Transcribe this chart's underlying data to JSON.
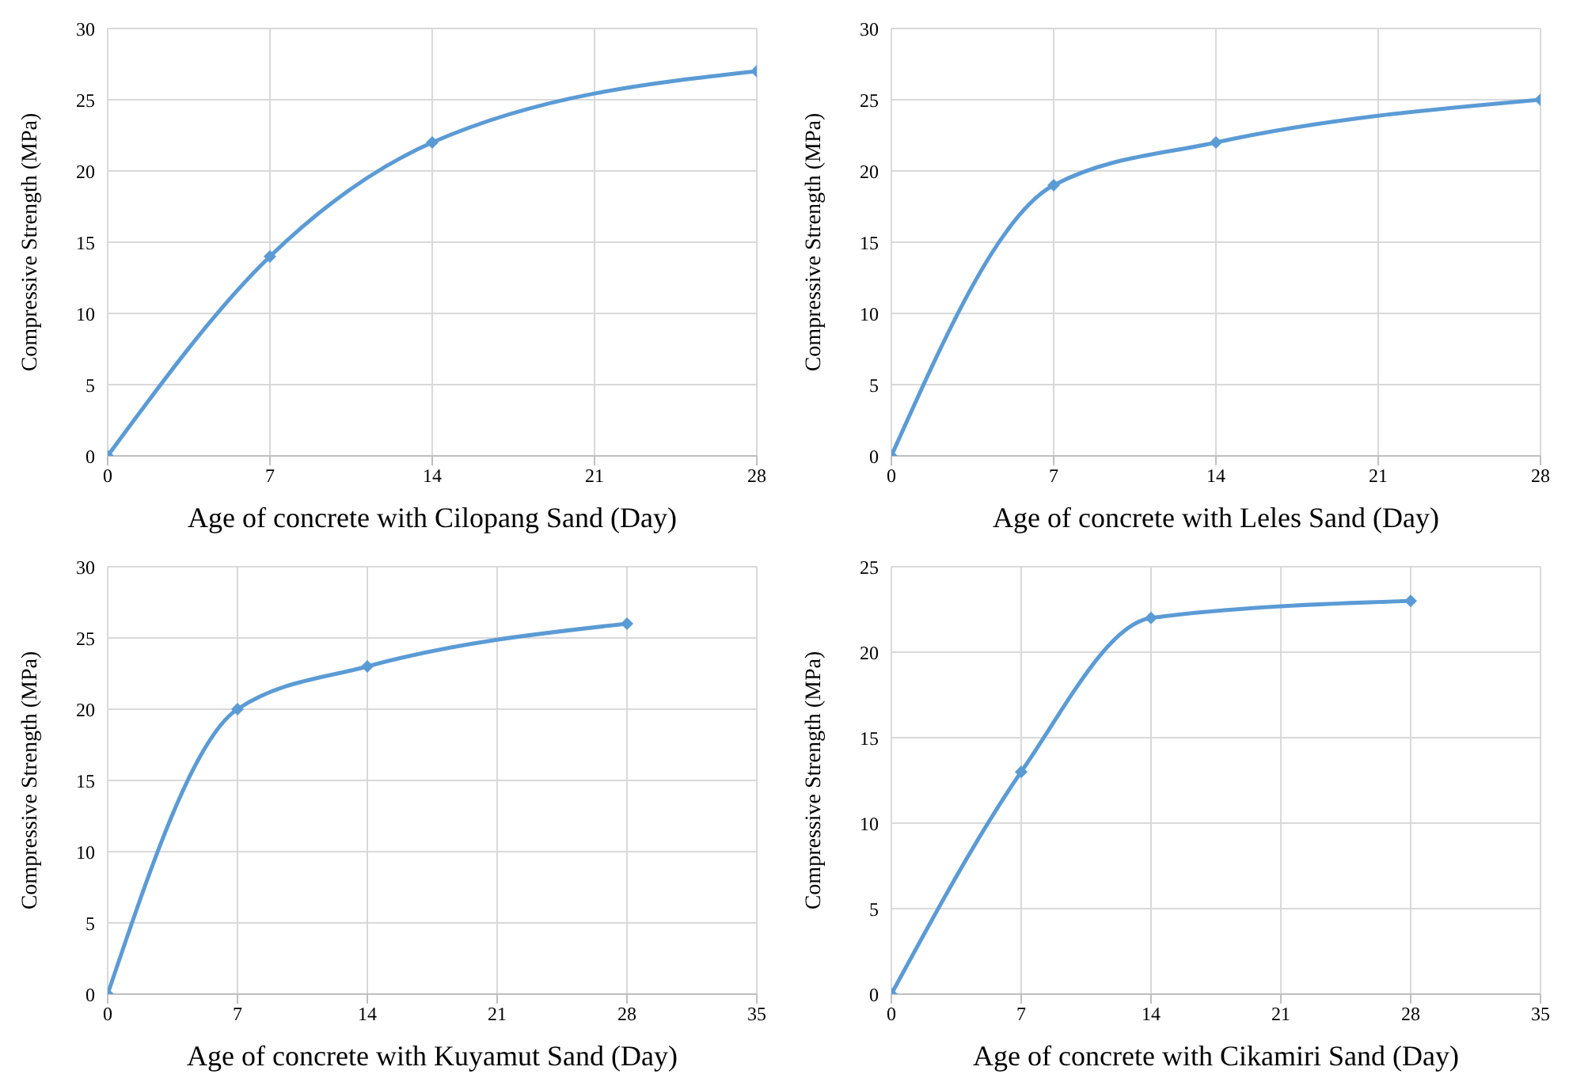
{
  "chart_data": [
    {
      "type": "line",
      "xlabel": "Age of concrete with Cilopang Sand (Day)",
      "ylabel": "Compressive Strength (MPa)",
      "x": [
        0,
        7,
        14,
        28
      ],
      "series": [
        {
          "color": "#5b9bd5",
          "values": [
            0,
            14,
            22,
            27
          ]
        }
      ],
      "xlim": [
        0,
        28
      ],
      "xticks": [
        0,
        7,
        14,
        21,
        28
      ],
      "ylim": [
        0,
        30
      ],
      "yticks": [
        0,
        5,
        10,
        15,
        20,
        25,
        30
      ],
      "grid": true,
      "legend": false,
      "marker": "diamond",
      "line_style": "solid"
    },
    {
      "type": "line",
      "xlabel": "Age of concrete with Leles Sand (Day)",
      "ylabel": "Compressive Strength (MPa)",
      "x": [
        0,
        7,
        14,
        28
      ],
      "series": [
        {
          "color": "#5b9bd5",
          "values": [
            0,
            19,
            22,
            25
          ]
        }
      ],
      "xlim": [
        0,
        28
      ],
      "xticks": [
        0,
        7,
        14,
        21,
        28
      ],
      "ylim": [
        0,
        30
      ],
      "yticks": [
        0,
        5,
        10,
        15,
        20,
        25,
        30
      ],
      "grid": true,
      "legend": false,
      "marker": "diamond",
      "line_style": "solid"
    },
    {
      "type": "line",
      "xlabel": "Age of concrete with Kuyamut Sand (Day)",
      "ylabel": "Compressive Strength (MPa)",
      "x": [
        0,
        7,
        14,
        28
      ],
      "series": [
        {
          "color": "#5b9bd5",
          "values": [
            0,
            20,
            23,
            26
          ]
        }
      ],
      "xlim": [
        0,
        35
      ],
      "xticks": [
        0,
        7,
        14,
        21,
        28,
        35
      ],
      "ylim": [
        0,
        30
      ],
      "yticks": [
        0,
        5,
        10,
        15,
        20,
        25,
        30
      ],
      "grid": true,
      "legend": false,
      "marker": "diamond",
      "line_style": "solid"
    },
    {
      "type": "line",
      "xlabel": "Age of concrete with Cikamiri Sand (Day)",
      "ylabel": "Compressive Strength (MPa)",
      "x": [
        0,
        7,
        14,
        28
      ],
      "series": [
        {
          "color": "#5b9bd5",
          "values": [
            0,
            13,
            22,
            23
          ]
        }
      ],
      "xlim": [
        0,
        35
      ],
      "xticks": [
        0,
        7,
        14,
        21,
        28,
        35
      ],
      "ylim": [
        0,
        25
      ],
      "yticks": [
        0,
        5,
        10,
        15,
        20,
        25
      ],
      "grid": true,
      "legend": false,
      "marker": "diamond",
      "line_style": "solid"
    }
  ]
}
